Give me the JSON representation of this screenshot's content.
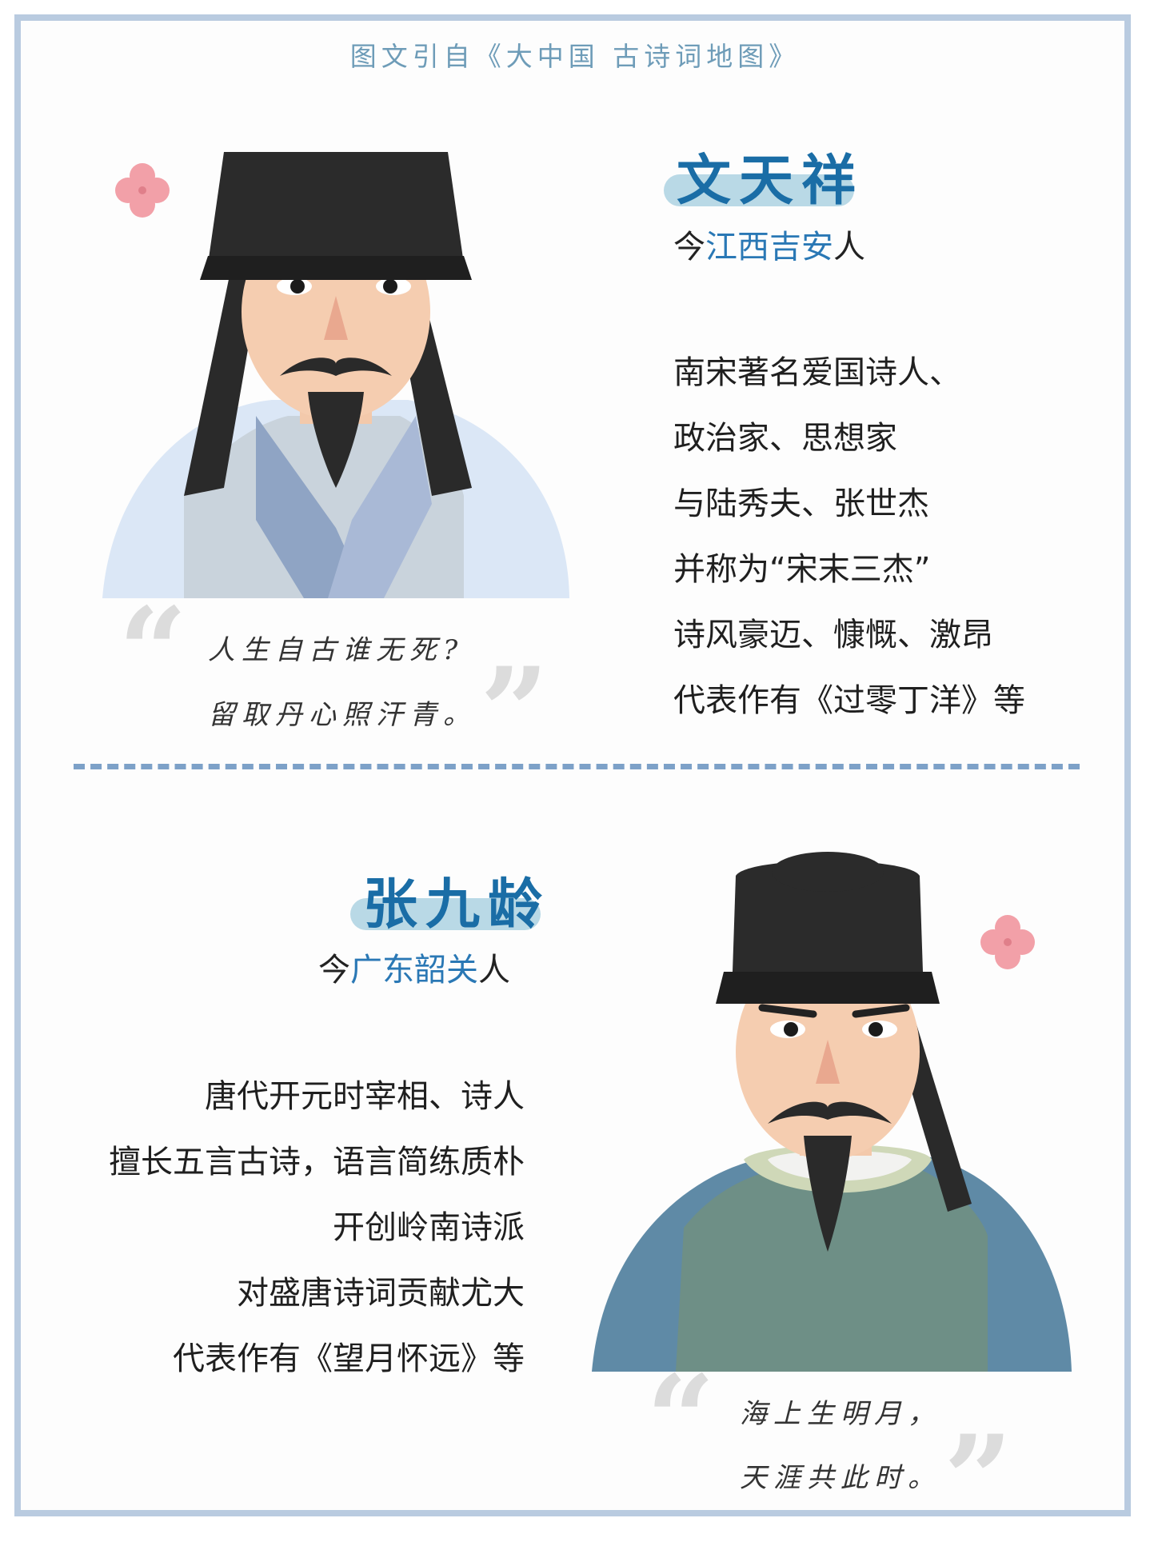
{
  "source": "图文引自《大中国 古诗词地图》",
  "poet1": {
    "name": "文天祥",
    "origin_prefix": "今",
    "origin_place": "江西吉安",
    "origin_suffix": "人",
    "bio": [
      "南宋著名爱国诗人、",
      "政治家、思想家",
      "与陆秀夫、张世杰",
      "并称为“宋末三杰”",
      "诗风豪迈、慷慨、激昂",
      "代表作有《过零丁洋》等"
    ],
    "quote": [
      "人生自古谁无死?",
      "留取丹心照汗青。"
    ]
  },
  "poet2": {
    "name": "张九龄",
    "origin_prefix": "今",
    "origin_place": "广东韶关",
    "origin_suffix": "人",
    "bio": [
      "唐代开元时宰相、诗人",
      "擅长五言古诗，语言简练质朴",
      "开创岭南诗派",
      "对盛唐诗词贡献尤大",
      "代表作有《望月怀远》等"
    ],
    "quote": [
      "海上生明月，",
      "天涯共此时。"
    ]
  },
  "colors": {
    "accent": "#1a6da6",
    "place": "#2a78b5",
    "frame": "#b9cbe0",
    "divider": "#7da1c8",
    "flower": "#f2a0a8"
  },
  "icons": [
    "flower-icon",
    "open-quote-icon",
    "close-quote-icon"
  ]
}
